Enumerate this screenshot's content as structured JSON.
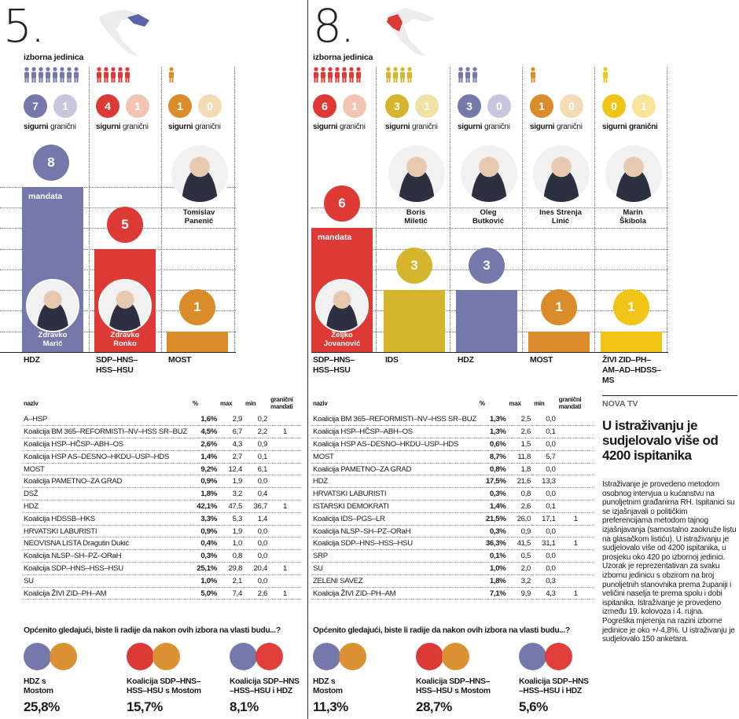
{
  "colors": {
    "hdz": "#7478ab",
    "sdp": "#de3a35",
    "most": "#da8c2a",
    "ids": "#d4b52b",
    "zivi": "#f1c517",
    "grey": "#c6c7dd",
    "pink": "#f2c4b4",
    "ochre": "#f3dcb3",
    "lightyellow": "#efe2a6",
    "zlight": "#f8e59a"
  },
  "units": [
    {
      "number": "5.",
      "label": "izborna jedinica",
      "parties": [
        {
          "name": "HDZ",
          "sigurni": "7",
          "granicni": "1",
          "mandates": 8,
          "people_count": 8,
          "color": "hdz",
          "people_color": "hdz",
          "light": "grey",
          "seat_label": "mandata",
          "person": "Zdravko Marić",
          "person_l1": "Zdravko",
          "person_l2": "Marić"
        },
        {
          "name_l1": "SDP–HNS–",
          "name_l2": "HSS–HSU",
          "sigurni": "4",
          "granicni": "1",
          "mandates": 5,
          "people_count": 5,
          "color": "sdp",
          "people_color": "sdp",
          "light": "pink",
          "person_l1": "Zdravko",
          "person_l2": "Ronko"
        },
        {
          "name": "MOST",
          "sigurni": "1",
          "granicni": "0",
          "mandates": 1,
          "people_count": 1,
          "color": "most",
          "people_color": "most",
          "light": "ochre",
          "person_l1": "Tomislav",
          "person_l2": "Panenić"
        }
      ],
      "sigurni_label": "sigurni",
      "granicni_label": "granični"
    },
    {
      "number": "8.",
      "label": "izborna jedinica",
      "parties": [
        {
          "name_l1": "SDP–HNS–",
          "name_l2": "HSS–HSU",
          "sigurni": "6",
          "granicni": "1",
          "mandates": 6,
          "color": "sdp",
          "light": "pink",
          "seat_label": "mandata",
          "person_l1": "Željko",
          "person_l2": "Jovanović"
        },
        {
          "name": "IDS",
          "sigurni": "3",
          "granicni": "1",
          "mandates": 3,
          "color": "ids",
          "light": "lightyellow",
          "person_l1": "Boris",
          "person_l2": "Miletić"
        },
        {
          "name": "HDZ",
          "sigurni": "3",
          "granicni": "0",
          "mandates": 3,
          "color": "hdz",
          "light": "grey",
          "person_l1": "Oleg",
          "person_l2": "Butković"
        },
        {
          "name": "MOST",
          "sigurni": "1",
          "granicni": "0",
          "mandates": 1,
          "color": "most",
          "light": "ochre",
          "person_l1": "Ines Strenja",
          "person_l2": "Linić"
        },
        {
          "name_l1": "ŽIVI ZID–PH–",
          "name_l2": "AM–AD–HDSS–",
          "name_l3": "MS",
          "sigurni": "0",
          "granicni": "1",
          "mandates": 1,
          "color": "zivi",
          "light": "zlight",
          "person_l1": "Marin",
          "person_l2": "Škibola"
        }
      ]
    }
  ],
  "chart_data": [
    {
      "type": "bar",
      "title": "5. izborna jedinica",
      "categories": [
        "HDZ",
        "SDP–HNS–HSS–HSU",
        "MOST"
      ],
      "values": [
        8,
        5,
        1
      ],
      "ylabel": "mandata"
    },
    {
      "type": "bar",
      "title": "8. izborna jedinica",
      "categories": [
        "SDP–HNS–HSS–HSU",
        "IDS",
        "HDZ",
        "MOST",
        "ŽIVI ZID–PH–AM–AD–HDSS–MS"
      ],
      "values": [
        6,
        3,
        3,
        1,
        1
      ],
      "ylabel": "mandata"
    },
    {
      "type": "table",
      "title": "5. izborna jedinica",
      "columns": [
        "naziv",
        "%",
        "max",
        "min",
        "granični mandati"
      ],
      "rows": [
        [
          "A–HSP",
          "1,6%",
          "2,9",
          "0,2",
          ""
        ],
        [
          "Koalicija BM 365–REFORMISTI–NV–HSS SR–BUZ",
          "4,5%",
          "6,7",
          "2,2",
          "1"
        ],
        [
          "Koalicija HSP–HČSP–ABH–OS",
          "2,6%",
          "4,3",
          "0,9",
          ""
        ],
        [
          "Koalicija HSP AS–DESNO–HKDU–USP–HDS",
          "1,4%",
          "2,7",
          "0,1",
          ""
        ],
        [
          "MOST",
          "9,2%",
          "12,4",
          "6,1",
          ""
        ],
        [
          "Koalicija PAMETNO–ZA GRAD",
          "0,9%",
          "1,9",
          "0,0",
          ""
        ],
        [
          "DSŽ",
          "1,8%",
          "3,2",
          "0,4",
          ""
        ],
        [
          "HDZ",
          "42,1%",
          "47,5",
          "36,7",
          "1"
        ],
        [
          "Koalicija HDSSB–HKS",
          "3,3%",
          "5,3",
          "1,4",
          ""
        ],
        [
          "HRVATSKI LABURISTI",
          "0,9%",
          "1,9",
          "0,0",
          ""
        ],
        [
          "NEOVISNA LISTA Dragutin Dukić",
          "0,4%",
          "1,0",
          "0,0",
          ""
        ],
        [
          "Koalicija NLSP–SH–PZ–ORaH",
          "0,3%",
          "0,8",
          "0,0",
          ""
        ],
        [
          "Koalicija SDP–HNS–HSS–HSU",
          "25,1%",
          "29,8",
          "20,4",
          "1"
        ],
        [
          "SU",
          "1,0%",
          "2,1",
          "0,0",
          ""
        ],
        [
          "Koalicija ŽIVI ZID–PH–AM",
          "5,0%",
          "7,4",
          "2,6",
          "1"
        ]
      ]
    },
    {
      "type": "table",
      "title": "8. izborna jedinica",
      "columns": [
        "naziv",
        "%",
        "max",
        "min",
        "granični mandati"
      ],
      "rows": [
        [
          "Koalicija BM 365–REFORMISTI–NV–HSS SR–BUZ",
          "1,3%",
          "2,5",
          "0,0",
          ""
        ],
        [
          "Koalicija HSP–HČSP–ABH–OS",
          "1,3%",
          "2,6",
          "0,1",
          ""
        ],
        [
          "Koalicija HSP AS–DESNO–HKDU–USP–HDS",
          "0,6%",
          "1,5",
          "0,0",
          ""
        ],
        [
          "MOST",
          "8,7%",
          "11,8",
          "5,7",
          ""
        ],
        [
          "Koalicija PAMETNO–ZA GRAD",
          "0,8%",
          "1,8",
          "0,0",
          ""
        ],
        [
          "HDZ",
          "17,5%",
          "21,6",
          "13,3",
          ""
        ],
        [
          "HRVATSKI LABURISTI",
          "0,3%",
          "0,8",
          "0,0",
          ""
        ],
        [
          "ISTARSKI DEMOKRATI",
          "1,4%",
          "2,6",
          "0,1",
          ""
        ],
        [
          "Koalicija IDS–PGS–LR",
          "21,5%",
          "26,0",
          "17,1",
          "1"
        ],
        [
          "Koalicija NLSP–SH–PZ–ORaH",
          "0,3%",
          "0,9",
          "0,0",
          ""
        ],
        [
          "Koalicija SDP–HNS–HSS–HSU",
          "36,3%",
          "41,5",
          "31,1",
          "1"
        ],
        [
          "SRP",
          "0,1%",
          "0,5",
          "0,0",
          ""
        ],
        [
          "SU",
          "1,0%",
          "2,0",
          "0,0",
          ""
        ],
        [
          "ZELENI SAVEZ",
          "1,8%",
          "3,2",
          "0,3",
          ""
        ],
        [
          "Koalicija ŽIVI ZID–PH–AM",
          "7,1%",
          "9,9",
          "4,3",
          "1"
        ]
      ]
    }
  ],
  "question": "Općenito gledajući, biste li radije da nakon ovih izbora na vlasti budu...?",
  "coalitions5": [
    {
      "l1": "HDZ s",
      "l2": "Mostom",
      "pct": "25,8%",
      "c1": "hdz",
      "c2": "most"
    },
    {
      "l1": "Koalicija SDP–HNS–",
      "l2": "HSS–HSU s Mostom",
      "pct": "15,7%",
      "c1": "sdp",
      "c2": "most"
    },
    {
      "l1": "Koalicija SDP–HNS",
      "l2": "–HSS–HSU i HDZ",
      "pct": "8,1%",
      "c1": "hdz",
      "c2": "sdp"
    }
  ],
  "coalitions8": [
    {
      "l1": "HDZ s",
      "l2": "Mostom",
      "pct": "11,3%",
      "c1": "hdz",
      "c2": "most"
    },
    {
      "l1": "Koalicija SDP–HNS–",
      "l2": "HSS–HSU s Mostom",
      "pct": "28,7%",
      "c1": "sdp",
      "c2": "most"
    },
    {
      "l1": "Koalicija SDP–HNS",
      "l2": "–HSS–HSU i HDZ",
      "pct": "5,6%",
      "c1": "hdz",
      "c2": "sdp"
    }
  ],
  "table_headers": {
    "naziv": "naziv",
    "pct": "%",
    "max": "max",
    "min": "min",
    "gm1": "granični",
    "gm2": "mandati"
  },
  "sidebar": {
    "kicker": "NOVA TV",
    "headline": "U istraživanju je sudjelovalo više od 4200 ispitanika",
    "body": "Istraživanje je provedeno metodom osobnog intervjua u kućanstvu na punoljetnim građanima RH. Ispitanici su se izjašnjavali o političkim preferencijama metodom tajnog izjašnjavanja (samostalno zaokruže listu na glasačkom listiću). U istraživanju je sudjelovalo više od 4200 ispitanika, u prosjeku oko 420 po izbornoj jedinici. Uzorak je reprezentativan za svaku izbornu jedinicu s obzirom na broj punoljetnih stanovnika prema županiji i veličini naselja te prema spolu i dobi ispitanika. Istraživanje je provedeno između 19. kolovoza i 4. rujna. Pogreška mjerenja na razini izborne jedinice je oko +/-4,8%. U istraživanju je sudjelovalo 150 anketara."
  }
}
